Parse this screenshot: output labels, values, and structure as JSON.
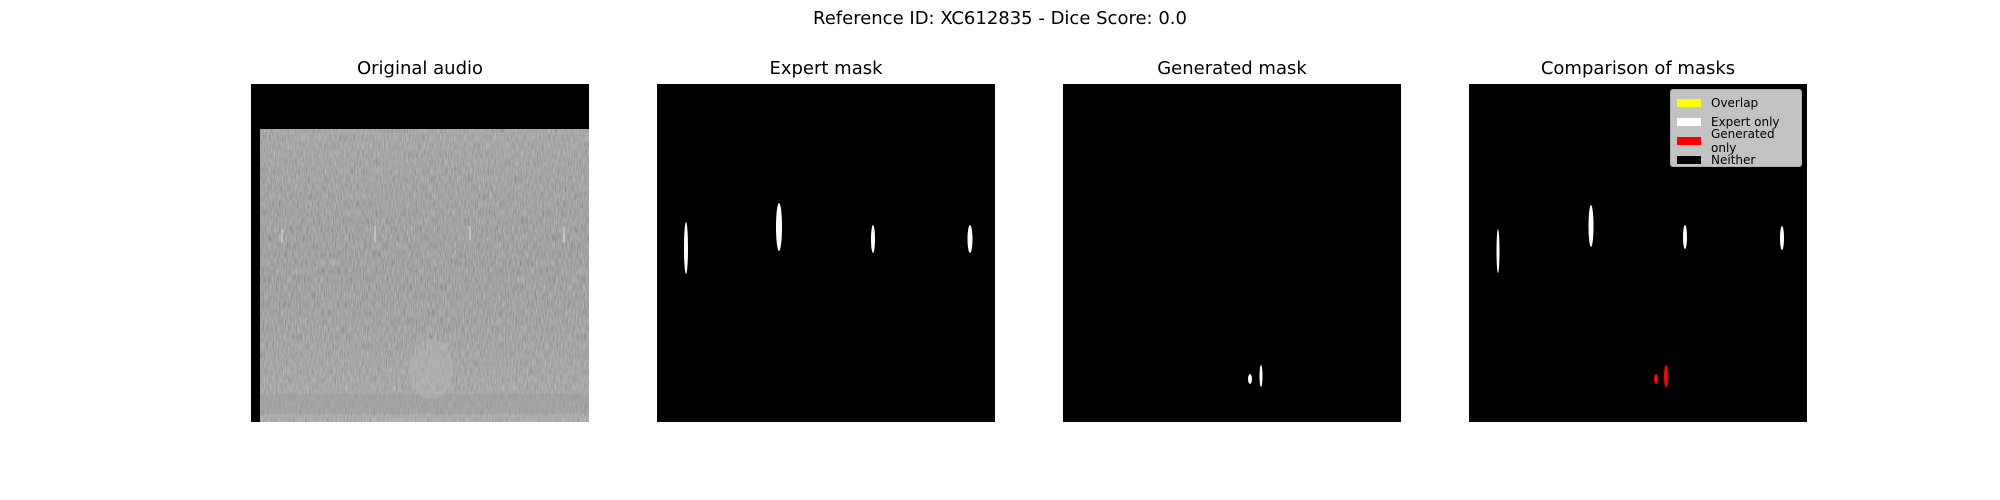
{
  "figure": {
    "suptitle": "Reference ID: XC612835 - Dice Score: 0.0"
  },
  "panels": [
    {
      "title": "Original audio"
    },
    {
      "title": "Expert mask"
    },
    {
      "title": "Generated mask"
    },
    {
      "title": "Comparison of masks"
    }
  ],
  "legend": {
    "items": [
      {
        "label": "Overlap",
        "color": "#ffff00"
      },
      {
        "label": "Expert only",
        "color": "#ffffff"
      },
      {
        "label": "Generated only",
        "color": "#ff0000"
      },
      {
        "label": "Neither",
        "color": "#000000"
      }
    ]
  },
  "colors": {
    "mask_expert": "#ffffff",
    "mask_generated_only": "#ff0000",
    "spectrogram_background": "#000000"
  }
}
